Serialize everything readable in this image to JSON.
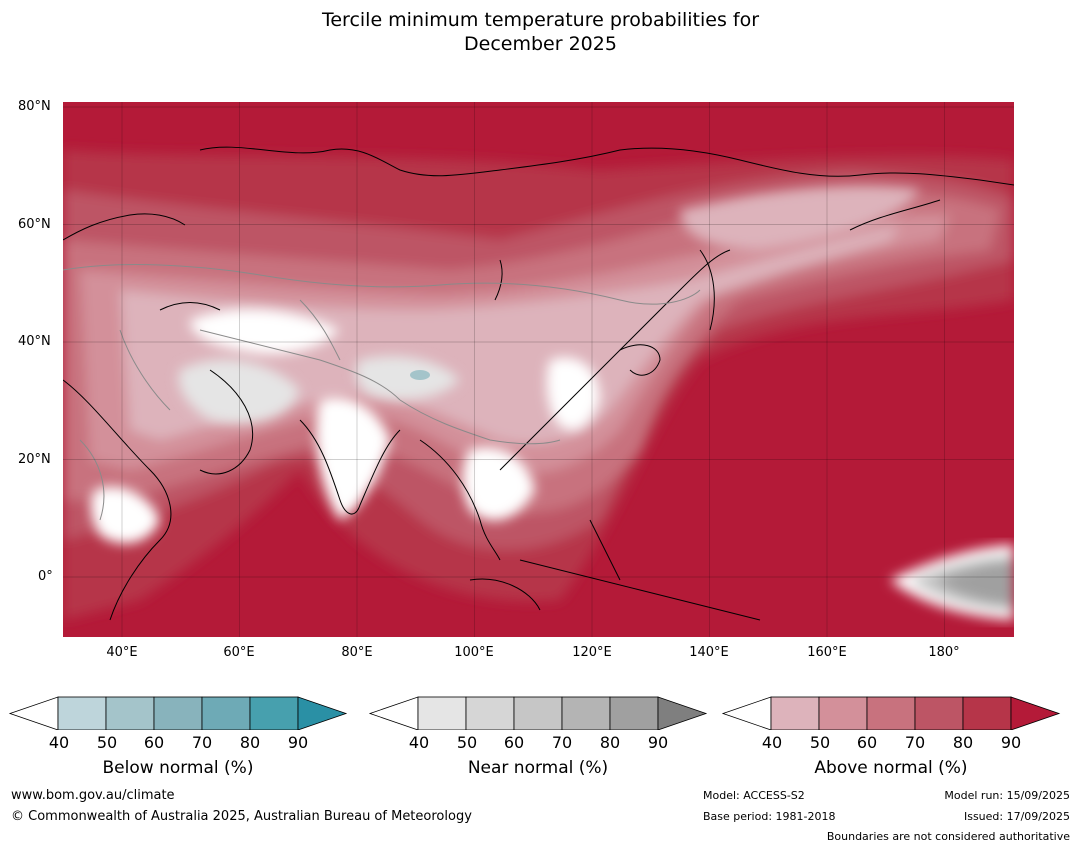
{
  "title": {
    "line1": "Tercile minimum temperature probabilities for",
    "line2": "December 2025"
  },
  "map": {
    "lat_labels": [
      "80°N",
      "60°N",
      "40°N",
      "20°N",
      "0°"
    ],
    "lon_labels": [
      "40°E",
      "60°E",
      "80°E",
      "100°E",
      "120°E",
      "140°E",
      "160°E",
      "180°"
    ],
    "colors": {
      "above": [
        "#ffffff",
        "#ddb3bb",
        "#d3909a",
        "#c8727e",
        "#bd5565",
        "#b63549",
        "#b41a38"
      ],
      "near": [
        "#ffffff",
        "#e5e5e5",
        "#d6d6d6",
        "#c6c6c6",
        "#b4b4b4",
        "#a0a0a0",
        "#7f7f7f"
      ],
      "below": [
        "#ffffff",
        "#bed5db",
        "#a4c4ca",
        "#88b3bc",
        "#6eaab6",
        "#47a0ae",
        "#2a90a5"
      ],
      "coast": "#000000",
      "border": "#8a8a8a"
    }
  },
  "colorbars": [
    {
      "name": "below",
      "title": "Below normal (%)",
      "ticks": [
        "40",
        "50",
        "60",
        "70",
        "80",
        "90"
      ],
      "colors": [
        "#bed5db",
        "#a4c4ca",
        "#88b3bc",
        "#6eaab6",
        "#47a0ae"
      ],
      "over": "#2a90a5"
    },
    {
      "name": "near",
      "title": "Near normal (%)",
      "ticks": [
        "40",
        "50",
        "60",
        "70",
        "80",
        "90"
      ],
      "colors": [
        "#e5e5e5",
        "#d6d6d6",
        "#c6c6c6",
        "#b4b4b4",
        "#a0a0a0"
      ],
      "over": "#7f7f7f"
    },
    {
      "name": "above",
      "title": "Above normal (%)",
      "ticks": [
        "40",
        "50",
        "60",
        "70",
        "80",
        "90"
      ],
      "colors": [
        "#ddb3bb",
        "#d3909a",
        "#c8727e",
        "#bd5565",
        "#b63549"
      ],
      "over": "#b41a38"
    }
  ],
  "footer": {
    "website": "www.bom.gov.au/climate",
    "copyright": "© Commonwealth of Australia 2025, Australian Bureau of Meteorology",
    "model": "Model: ACCESS-S2",
    "base_period": "Base period: 1981-2018",
    "model_run": "Model run: 15/09/2025",
    "issued": "Issued: 17/09/2025",
    "disclaimer": "Boundaries are not considered authoritative"
  }
}
